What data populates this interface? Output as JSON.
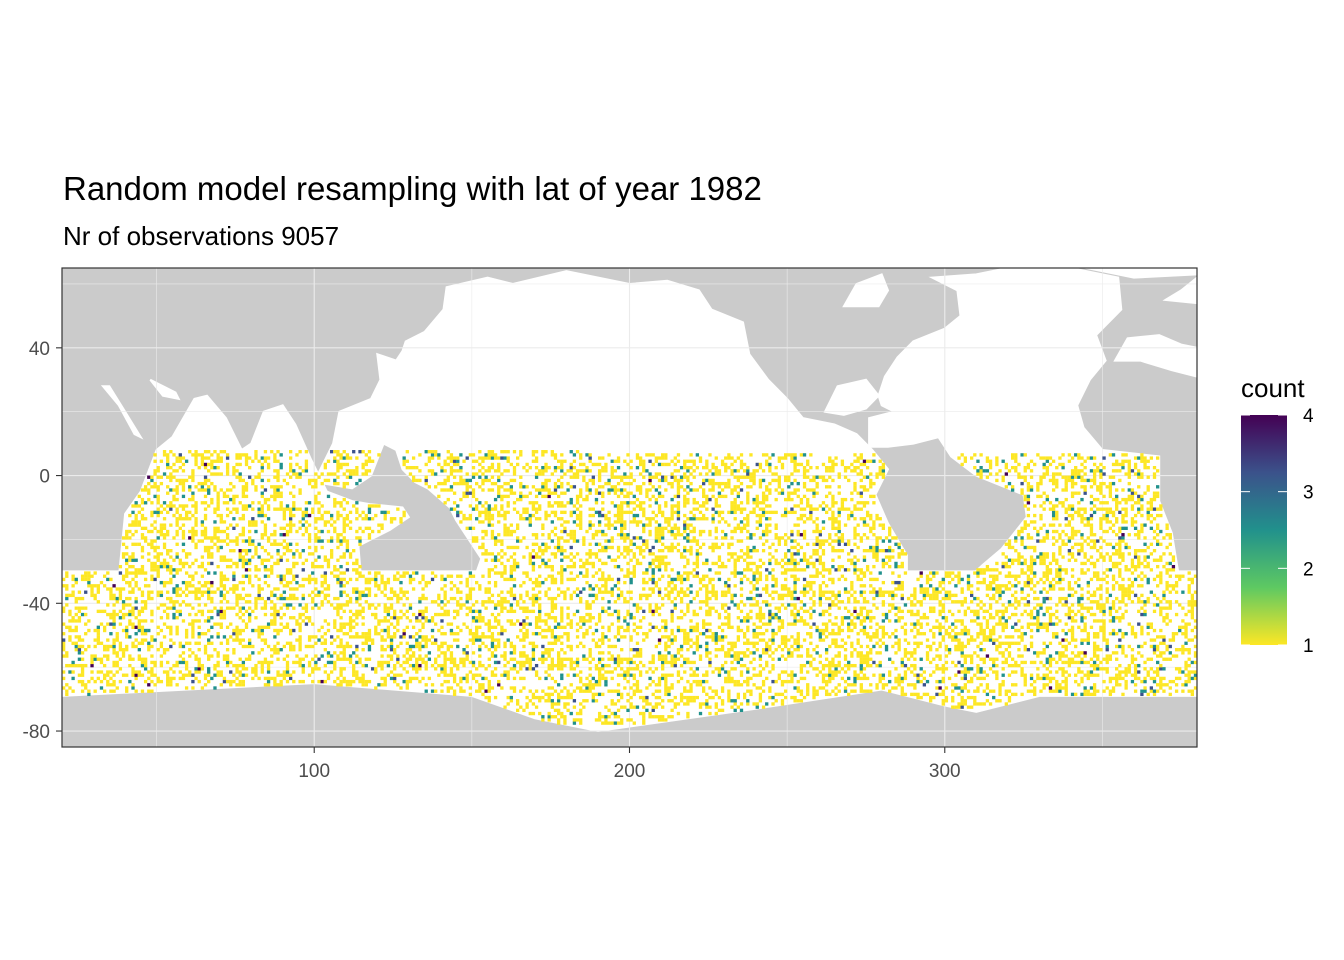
{
  "chart_data": {
    "type": "heatmap",
    "title": "Random model resampling with lat of year 1982",
    "subtitle": "Nr of observations 9057",
    "xlabel": "",
    "ylabel": "",
    "xlim": [
      20,
      380
    ],
    "ylim": [
      -85,
      65
    ],
    "x_ticks": [
      100,
      200,
      300
    ],
    "y_ticks": [
      -80,
      -40,
      0,
      40
    ],
    "grid": true,
    "legend": {
      "title": "count",
      "position": "right",
      "min": 1,
      "max": 4,
      "ticks": [
        1,
        2,
        3,
        4
      ],
      "colors": [
        "#fde725",
        "#5ec962",
        "#21918c",
        "#3b528b",
        "#440154"
      ]
    },
    "colors": {
      "land": "#cbcbcb",
      "ocean": "#ffffff",
      "panel_border": "#333333"
    },
    "observations": 9057
  }
}
